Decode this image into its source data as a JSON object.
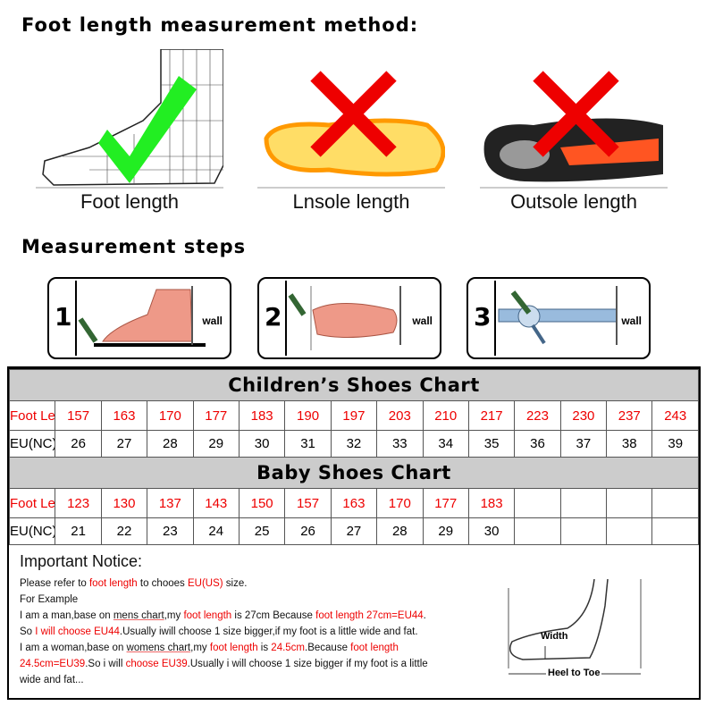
{
  "measurement_method": {
    "title": "Foot length measurement method:",
    "panels": [
      {
        "caption": "Foot length",
        "verdict": "check"
      },
      {
        "caption": "Lnsole length",
        "verdict": "cross"
      },
      {
        "caption": "Outsole length",
        "verdict": "cross"
      }
    ]
  },
  "measurement_steps": {
    "title": "Measurement steps",
    "steps": [
      {
        "number": "1",
        "wall": "wall"
      },
      {
        "number": "2",
        "wall": "wall"
      },
      {
        "number": "3",
        "wall": "wall"
      }
    ]
  },
  "children_chart": {
    "title": "Children’s Shoes Chart",
    "length_label": "Foot Lenght(mm)",
    "size_label": "EU(NC) Size",
    "lengths": [
      "157",
      "163",
      "170",
      "177",
      "183",
      "190",
      "197",
      "203",
      "210",
      "217",
      "223",
      "230",
      "237",
      "243"
    ],
    "sizes": [
      "26",
      "27",
      "28",
      "29",
      "30",
      "31",
      "32",
      "33",
      "34",
      "35",
      "36",
      "37",
      "38",
      "39"
    ]
  },
  "baby_chart": {
    "title": "Baby Shoes Chart",
    "length_label": "Foot Lenght(mm)",
    "size_label": "EU(NC) Size",
    "lengths": [
      "123",
      "130",
      "137",
      "143",
      "150",
      "157",
      "163",
      "170",
      "177",
      "183",
      "",
      "",
      "",
      ""
    ],
    "sizes": [
      "21",
      "22",
      "23",
      "24",
      "25",
      "26",
      "27",
      "28",
      "29",
      "30",
      "",
      "",
      "",
      ""
    ]
  },
  "notice": {
    "title": "Important Notice:",
    "l1": [
      "Please refer to ",
      "foot length",
      " to chooes ",
      "EU(US)",
      " size."
    ],
    "l2": "For Example",
    "l3": [
      "I am a man,base on ",
      "mens chart",
      ",my ",
      "foot length",
      " is 27cm Because ",
      "foot length 27cm=EU44",
      "."
    ],
    "l4": [
      "So ",
      "I will choose EU44",
      ".Usually iwill choose 1 size bigger,if my foot is a little wide and fat."
    ],
    "l5": [
      "I am a woman,base on ",
      "womens chart",
      ",my ",
      "foot length",
      " is ",
      "24.5cm",
      ".Because ",
      "foot length"
    ],
    "l6": [
      "24.5cm=EU39",
      ".So i will ",
      "choose EU39",
      ".Usually i will choose 1 size bigger if my foot is a little"
    ],
    "l7": "wide and fat...",
    "diagram": {
      "width": "Width",
      "heel_to_toe": "Heel to Toe"
    }
  },
  "colors": {
    "accent_red": "#ee0000",
    "check_green": "#22ee22",
    "header_gray": "#cccccc"
  }
}
